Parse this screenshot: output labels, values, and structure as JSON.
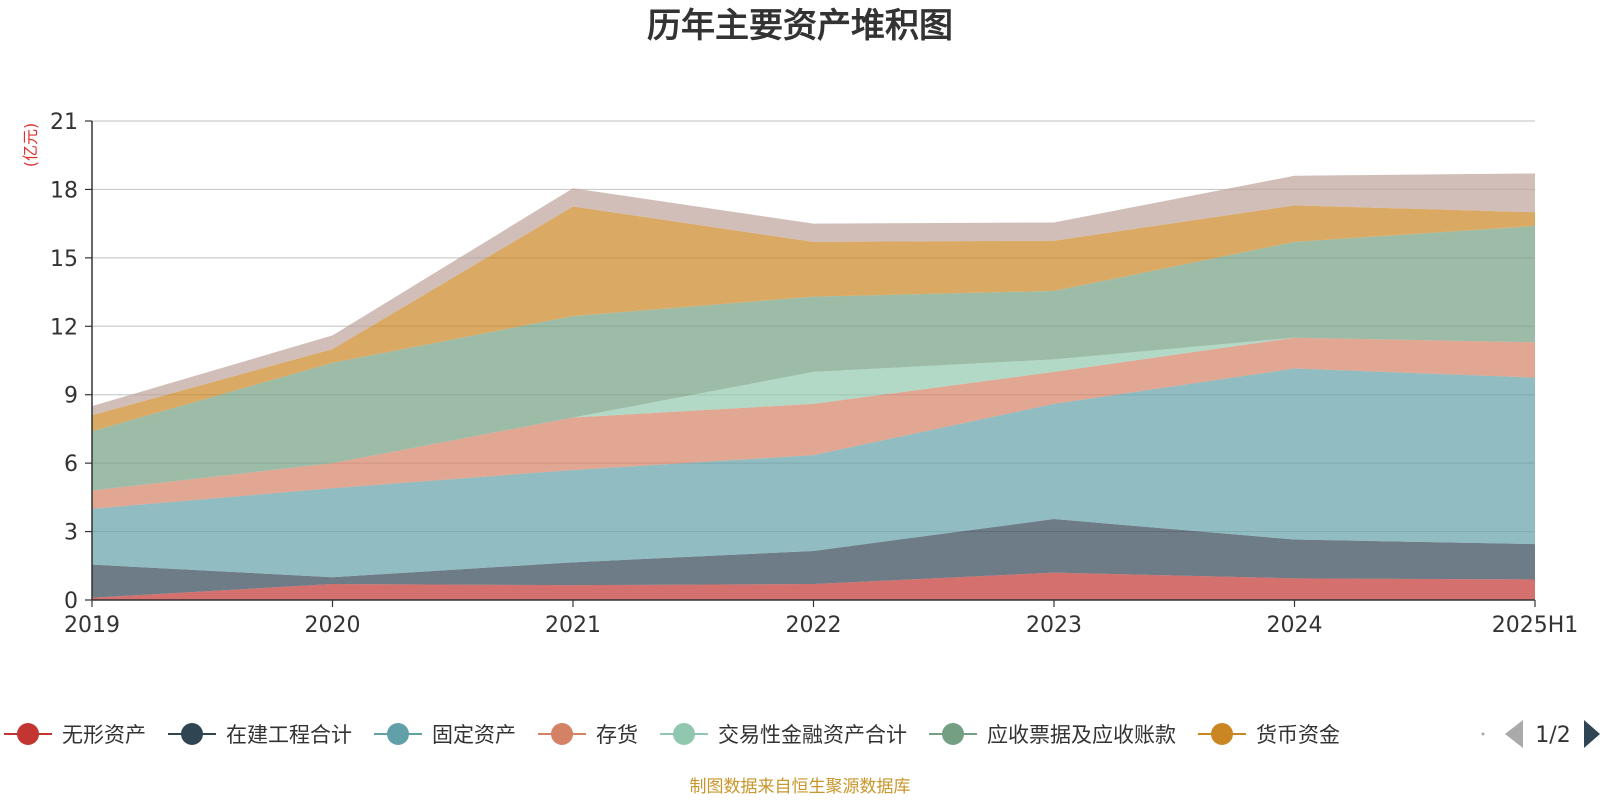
{
  "chart_data": {
    "type": "area",
    "stacked": true,
    "title": "历年主要资产堆积图",
    "unit_label": "(亿元)",
    "categories": [
      "2019",
      "2020",
      "2021",
      "2022",
      "2023",
      "2024",
      "2025H1"
    ],
    "ylim": [
      0,
      21
    ],
    "yticks": [
      0,
      3,
      6,
      9,
      12,
      15,
      18,
      21
    ],
    "grid": true,
    "legend_position": "bottom",
    "series": [
      {
        "name": "无形资产",
        "color": "#c23531",
        "values": [
          0.1,
          0.7,
          0.65,
          0.7,
          1.2,
          0.95,
          0.9
        ]
      },
      {
        "name": "在建工程合计",
        "color": "#2f4554",
        "values": [
          1.45,
          0.3,
          1.0,
          1.45,
          2.35,
          1.7,
          1.55
        ]
      },
      {
        "name": "固定资产",
        "color": "#61a0a8",
        "values": [
          2.45,
          3.9,
          4.05,
          4.2,
          5.05,
          7.5,
          7.3
        ]
      },
      {
        "name": "存货",
        "color": "#d48265",
        "values": [
          0.8,
          1.1,
          2.3,
          2.25,
          1.4,
          1.35,
          1.55
        ]
      },
      {
        "name": "交易性金融资产合计",
        "color": "#91c7ae",
        "values": [
          0,
          0,
          0,
          1.4,
          0.55,
          0,
          0
        ]
      },
      {
        "name": "应收票据及应收账款",
        "color": "#749f83",
        "values": [
          2.6,
          4.4,
          4.45,
          3.3,
          3.0,
          4.2,
          5.1
        ]
      },
      {
        "name": "货币资金",
        "color": "#ca8622",
        "values": [
          0.7,
          0.6,
          4.8,
          2.4,
          2.2,
          1.6,
          0.6
        ]
      },
      {
        "name": "",
        "color": "#bda29a",
        "values": [
          0.4,
          0.6,
          0.8,
          0.8,
          0.8,
          1.3,
          1.7
        ]
      }
    ]
  },
  "legend": {
    "page_label": "1/2",
    "visible_count": 7
  },
  "footer": "制图数据来自恒生聚源数据库"
}
